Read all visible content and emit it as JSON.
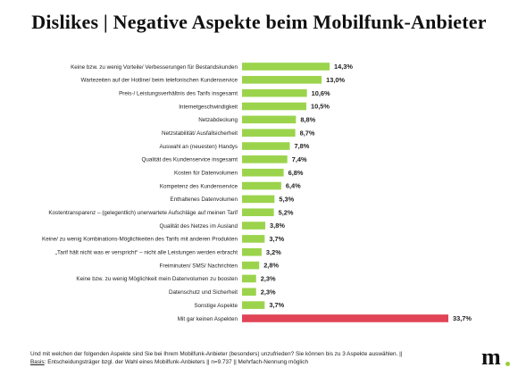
{
  "title": "Dislikes | Negative Aspekte beim Mobilfunk-Anbieter",
  "footer": {
    "question": "Und mit welchen der folgenden Aspekte sind Sie bei Ihrem Mobilfunk-Anbieter (besonders) unzufrieden? Sie können bis zu 3 Aspekte auswählen. ||",
    "basis_label": "Basis",
    "basis_text": ": Entscheidungsträger bzgl. der Wahl eines Mobilfunk-Anbieters || n=9.737 || Mehrfach-Nennung möglich"
  },
  "logo": {
    "text": "m",
    "dot_color": "#9acd3c"
  },
  "colors": {
    "bar": "#9bd44c",
    "highlight": "#e04456",
    "text": "#222222"
  },
  "chart_data": {
    "type": "bar",
    "orientation": "horizontal",
    "categories": [
      "Keine bzw. zu wenig Vorteile/ Verbesserungen für Bestandskunden",
      "Wartezeiten auf der Hotline/ beim telefonischen Kundenservice",
      "Preis-/ Leistungsverhältnis des Tarifs insgesamt",
      "Internetgeschwindigkeit",
      "Netzabdeckung",
      "Netzstabilität/ Ausfallsicherheit",
      "Auswahl an (neuesten) Handys",
      "Qualität des Kundenservice insgesamt",
      "Kosten für Datenvolumen",
      "Kompetenz des Kundenservice",
      "Enthaltenes Datenvolumen",
      "Kostentransparenz – (gelegentlich) unerwartete Aufschläge auf meinen Tarif",
      "Qualität des Netzes im Ausland",
      "Keine/ zu wenig Kombinations-Möglichkeiten des  Tarifs mit anderen Produkten",
      "„Tarif hält nicht was er verspricht“ – nicht alle Leistungen werden erbracht",
      "Freiminuten/ SMS/ Nachrichten",
      "Keine bzw. zu wenig Möglichkeit mein Datenvolumen zu boosten",
      "Datenschutz und Sicherheit",
      "Sonstige Aspekte",
      "Mit gar keinen Aspekten"
    ],
    "values": [
      14.3,
      13.0,
      10.6,
      10.5,
      8.8,
      8.7,
      7.8,
      7.4,
      6.8,
      6.4,
      5.3,
      5.2,
      3.8,
      3.7,
      3.2,
      2.8,
      2.3,
      2.3,
      3.7,
      33.7
    ],
    "value_labels": [
      "14,3%",
      "13,0%",
      "10,6%",
      "10,5%",
      "8,8%",
      "8,7%",
      "7,8%",
      "7,4%",
      "6,8%",
      "6,4%",
      "5,3%",
      "5,2%",
      "3,8%",
      "3,7%",
      "3,2%",
      "2,8%",
      "2,3%",
      "2,3%",
      "3,7%",
      "33,7%"
    ],
    "highlight_index": 19,
    "xlim": [
      0,
      33.7
    ]
  }
}
